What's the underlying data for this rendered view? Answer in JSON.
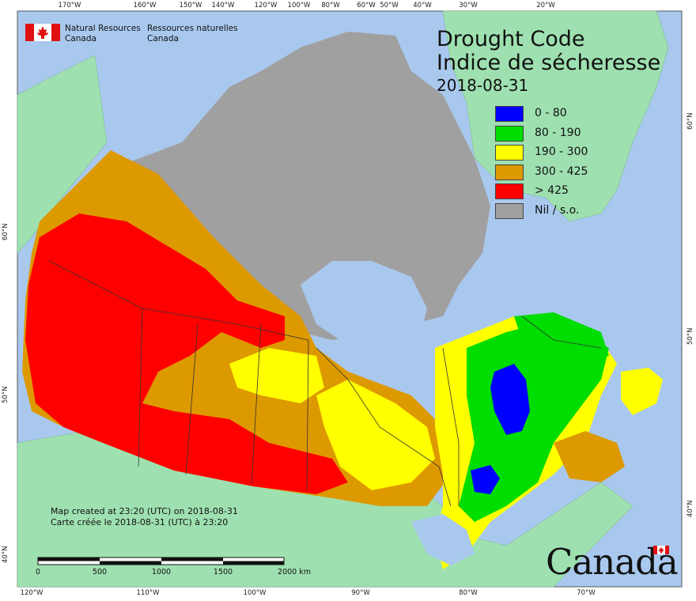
{
  "agency": {
    "name_en_line1": "Natural Resources",
    "name_en_line2": "Canada",
    "name_fr_line1": "Ressources naturelles",
    "name_fr_line2": "Canada"
  },
  "title": {
    "line1": "Drought Code",
    "line2": "Indice de sécheresse",
    "date": "2018-08-31"
  },
  "legend": [
    {
      "label": "0 - 80",
      "color": "#0000ff"
    },
    {
      "label": "80 - 190",
      "color": "#00dd00"
    },
    {
      "label": "190 - 300",
      "color": "#ffff00"
    },
    {
      "label": "300 - 425",
      "color": "#dd9900"
    },
    {
      "label": "> 425",
      "color": "#ff0000"
    },
    {
      "label": "Nil / s.o.",
      "color": "#a0a0a0"
    }
  ],
  "colors": {
    "ocean": "#a9c8ee",
    "foreign_land": "#9ee0b0",
    "border": "#333333"
  },
  "graticule": {
    "top": [
      "170°W",
      "160°W",
      "150°W",
      "140°W",
      "120°W",
      "100°W",
      "80°W",
      "60°W",
      "50°W",
      "40°W",
      "30°W",
      "20°W"
    ],
    "bottom": [
      "120°W",
      "110°W",
      "100°W",
      "90°W",
      "80°W",
      "70°W"
    ],
    "left": [
      "60°N",
      "50°N",
      "40°N"
    ],
    "right": [
      "60°N",
      "50°N",
      "40°N"
    ]
  },
  "footer": {
    "created_en": "Map created at 23:20 (UTC) on 2018-08-31",
    "created_fr": "Carte créée le 2018-08-31 (UTC) à 23:20"
  },
  "scale_bar": {
    "labels": [
      "0",
      "500",
      "1000",
      "1500",
      "2000  km"
    ]
  },
  "wordmark": "Canada"
}
